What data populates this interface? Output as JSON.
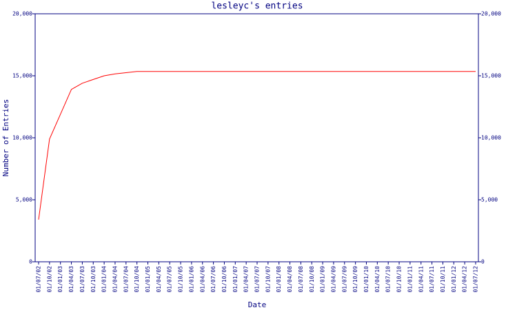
{
  "chart_data": {
    "type": "line",
    "title": "lesleyc's entries",
    "x_label": "Date",
    "y_label": "Number of Entries",
    "categories": [
      "01/07/02",
      "01/10/02",
      "01/01/03",
      "01/04/03",
      "01/07/03",
      "01/10/03",
      "01/01/04",
      "01/04/04",
      "01/07/04",
      "01/10/04",
      "01/01/05",
      "01/04/05",
      "01/07/05",
      "01/10/05",
      "01/01/06",
      "01/04/06",
      "01/07/06",
      "01/10/06",
      "01/01/07",
      "01/04/07",
      "01/07/07",
      "01/10/07",
      "01/01/08",
      "01/04/08",
      "01/07/08",
      "01/10/08",
      "01/01/09",
      "01/04/09",
      "01/07/09",
      "01/10/09",
      "01/01/10",
      "01/04/10",
      "01/07/10",
      "01/10/10",
      "01/01/11",
      "01/04/11",
      "01/07/11",
      "01/10/11",
      "01/01/12",
      "01/04/12",
      "01/07/12"
    ],
    "series": [
      {
        "name": "entries",
        "color": "#ff0000",
        "values": [
          3400,
          9900,
          11900,
          13900,
          14400,
          14700,
          15000,
          15150,
          15250,
          15350,
          15350,
          15350,
          15350,
          15350,
          15350,
          15350,
          15350,
          15350,
          15350,
          15350,
          15350,
          15350,
          15350,
          15350,
          15350,
          15350,
          15350,
          15350,
          15350,
          15350,
          15350,
          15350,
          15350,
          15350,
          15350,
          15350,
          15350,
          15350,
          15350,
          15350,
          15350
        ]
      }
    ],
    "ylim": [
      0,
      20000
    ],
    "yticks": [
      0,
      {
        "value": 5000,
        "label": "5,000"
      },
      {
        "value": 10000,
        "label": "10,000"
      },
      {
        "value": 15000,
        "label": "15,000"
      },
      {
        "value": 20000,
        "label": "20,000"
      }
    ],
    "axis_color": "#000080"
  }
}
